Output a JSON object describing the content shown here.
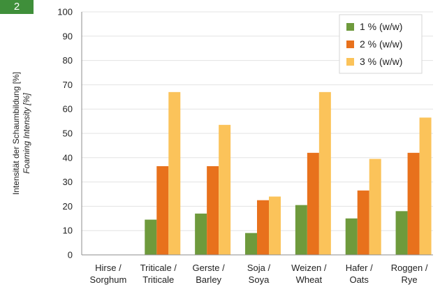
{
  "badge": "2",
  "chart_data": {
    "type": "bar",
    "ylabel": "Intensität der Schaumbildung [%]",
    "ylabel_secondary": "Foaming Intensity [%]",
    "ylim": [
      0,
      100
    ],
    "yticks": [
      0,
      10,
      20,
      30,
      40,
      50,
      60,
      70,
      80,
      90,
      100
    ],
    "grid": "horizontal",
    "legend_position": "top-right",
    "categories": [
      [
        "Hirse /",
        "Sorghum"
      ],
      [
        "Triticale /",
        "Triticale"
      ],
      [
        "Gerste /",
        "Barley"
      ],
      [
        "Soja /",
        "Soya"
      ],
      [
        "Weizen /",
        "Wheat"
      ],
      [
        "Hafer /",
        "Oats"
      ],
      [
        "Roggen /",
        "Rye"
      ]
    ],
    "series": [
      {
        "name": "1 % (w/w)",
        "color": "#6e9a3c",
        "values": [
          0,
          14.5,
          17,
          9,
          20.5,
          15,
          18
        ]
      },
      {
        "name": "2 % (w/w)",
        "color": "#e8711c",
        "values": [
          0,
          36.5,
          36.5,
          22.5,
          42,
          26.5,
          42
        ]
      },
      {
        "name": "3 % (w/w)",
        "color": "#fbc35a",
        "values": [
          0,
          67,
          53.5,
          24,
          67,
          39.5,
          56.5
        ]
      }
    ]
  }
}
